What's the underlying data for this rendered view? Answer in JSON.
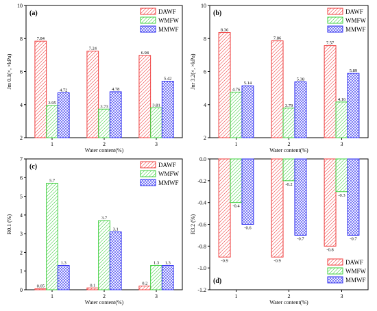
{
  "legend": [
    "DAWF",
    "WMFW",
    "MMWF"
  ],
  "colors": {
    "DAWF": "#ef3b3b",
    "WMFW": "#3fcf3f",
    "MMWF": "#2f2ff0"
  },
  "chart_data": [
    {
      "type": "bar",
      "panel_label": "(a)",
      "categories": [
        "1",
        "2",
        "3"
      ],
      "series": [
        {
          "name": "DAWF",
          "values": [
            7.84,
            7.24,
            6.98
          ],
          "labels": [
            "7.84",
            "7.24",
            "6.98"
          ]
        },
        {
          "name": "WMFW",
          "values": [
            3.95,
            3.73,
            3.81
          ],
          "labels": [
            "3.95",
            "3.73",
            "3.81"
          ]
        },
        {
          "name": "MMWF",
          "values": [
            4.72,
            4.78,
            5.42
          ],
          "labels": [
            "4.72",
            "4.78",
            "5.42"
          ]
        }
      ],
      "xlabel": "Water content(%)",
      "ylabel": "Jm 0.1(×, ×kPa)",
      "ylim": [
        2,
        10
      ],
      "yticks": [
        2,
        4,
        6,
        8,
        10
      ],
      "ytick_labels": [
        "2",
        "4",
        "6",
        "8",
        "10"
      ],
      "legend_position": "top-right"
    },
    {
      "type": "bar",
      "panel_label": "(b)",
      "categories": [
        "1",
        "2",
        "3"
      ],
      "series": [
        {
          "name": "DAWF",
          "values": [
            8.36,
            7.86,
            7.57
          ],
          "labels": [
            "8.36",
            "7.86",
            "7.57"
          ]
        },
        {
          "name": "WMFW",
          "values": [
            4.76,
            3.79,
            4.16
          ],
          "labels": [
            "4.76",
            "3.79",
            "4.16"
          ]
        },
        {
          "name": "MMWF",
          "values": [
            5.14,
            5.38,
            5.89
          ],
          "labels": [
            "5.14",
            "5.38",
            "5.89"
          ]
        }
      ],
      "xlabel": "Water content(%)",
      "ylabel": "Jnr 3.2(×, ×kPa)",
      "ylim": [
        2,
        10
      ],
      "yticks": [
        2,
        4,
        6,
        8,
        10
      ],
      "ytick_labels": [
        "2",
        "4",
        "6",
        "8",
        "10"
      ],
      "legend_position": "top-right"
    },
    {
      "type": "bar",
      "panel_label": "(c)",
      "categories": [
        "1",
        "2",
        "3"
      ],
      "series": [
        {
          "name": "DAWF",
          "values": [
            0.05,
            0.1,
            0.2
          ],
          "labels": [
            "0.05",
            "0.1",
            "0.2"
          ]
        },
        {
          "name": "WMFW",
          "values": [
            5.7,
            3.7,
            1.3
          ],
          "labels": [
            "5.7",
            "3.7",
            "1.3"
          ]
        },
        {
          "name": "MMWF",
          "values": [
            1.3,
            3.1,
            1.3
          ],
          "labels": [
            "1.3",
            "3.1",
            "1.3"
          ]
        }
      ],
      "xlabel": "Water content(%)",
      "ylabel": "R0.1 (%)",
      "ylim": [
        0,
        7
      ],
      "yticks": [
        0,
        1,
        2,
        3,
        4,
        5,
        6,
        7
      ],
      "ytick_labels": [
        "0",
        "1",
        "2",
        "3",
        "4",
        "5",
        "6",
        "7"
      ],
      "legend_position": "top-right"
    },
    {
      "type": "bar",
      "panel_label": "(d)",
      "categories": [
        "1",
        "2",
        "3"
      ],
      "series": [
        {
          "name": "DAWF",
          "values": [
            -0.9,
            -0.9,
            -0.8
          ],
          "labels": [
            "-0.9",
            "-0.9",
            "-0.8"
          ]
        },
        {
          "name": "WMFW",
          "values": [
            -0.4,
            -0.2,
            -0.3
          ],
          "labels": [
            "-0.4",
            "-0.2",
            "-0.3"
          ]
        },
        {
          "name": "MMWF",
          "values": [
            -0.6,
            -0.7,
            -0.7
          ],
          "labels": [
            "-0.6",
            "-0.7",
            "-0.7"
          ]
        }
      ],
      "xlabel": "Water content(%)",
      "ylabel": "R3.2 (%)",
      "ylim": [
        -1.2,
        0
      ],
      "yticks": [
        -1.2,
        -1.0,
        -0.8,
        -0.6,
        -0.4,
        -0.2,
        0.0
      ],
      "ytick_labels": [
        "-1.2",
        "-1.0",
        "-0.8",
        "-0.6",
        "-0.4",
        "-0.2",
        "0.0"
      ],
      "legend_position": "bottom-right"
    }
  ]
}
